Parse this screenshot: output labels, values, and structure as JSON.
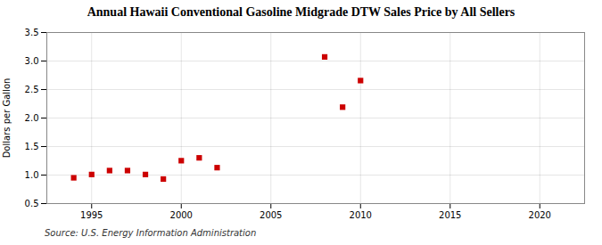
{
  "chart_data": {
    "type": "scatter",
    "title": "Annual Hawaii Conventional Gasoline Midgrade DTW Sales Price by All Sellers",
    "ylabel": "Dollars per Gallon",
    "annotations": [
      "Source: U.S. Energy Information Administration"
    ],
    "x": [
      1994,
      1995,
      1996,
      1997,
      1998,
      1999,
      2000,
      2001,
      2002,
      2008,
      2009,
      2010
    ],
    "values": [
      0.952,
      1.01,
      1.079,
      1.079,
      1.01,
      0.93,
      1.252,
      1.302,
      1.13,
      3.072,
      2.191,
      2.657
    ],
    "color": "#cc0000",
    "marker": "square",
    "xlim": [
      1992.5,
      2022.5
    ],
    "ylim": [
      0.5,
      3.5
    ],
    "xticks": [
      1995,
      2000,
      2005,
      2010,
      2015,
      2020
    ],
    "yticks": [
      0.5,
      {
        "value": 1,
        "label": "1.0"
      },
      1.5,
      {
        "value": 2,
        "label": "2.0"
      },
      2.5,
      {
        "value": 3,
        "label": "3.0"
      },
      3.5
    ],
    "grid": true
  }
}
